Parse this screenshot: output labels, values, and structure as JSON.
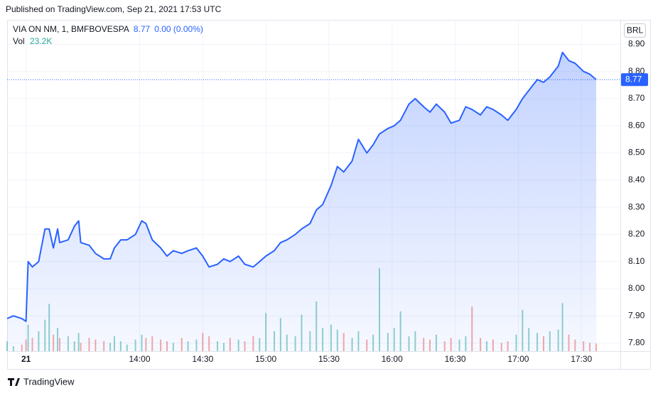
{
  "header": {
    "published": "Published on TradingView.com, Sep 21, 2021 17:53 UTC"
  },
  "footer": {
    "brand": "TradingView"
  },
  "chart_data": {
    "type": "area",
    "symbol": "VIA ON NM, 1, BMFBOVESPA",
    "change": "0.00 (0.00%)",
    "currency": "BRL",
    "volume_name": "Vol",
    "volume_label": "23.2K",
    "xlim": [
      777,
      1068.5
    ],
    "ylim": [
      7.77,
      8.99
    ],
    "y2lim": [
      0,
      1000000
    ],
    "grid": true,
    "xticks": [
      {
        "value": 786,
        "label": "21"
      },
      {
        "value": 840,
        "label": "14:00"
      },
      {
        "value": 870,
        "label": "14:30"
      },
      {
        "value": 900,
        "label": "15:00"
      },
      {
        "value": 930,
        "label": "15:30"
      },
      {
        "value": 960,
        "label": "16:00"
      },
      {
        "value": 990,
        "label": "16:30"
      },
      {
        "value": 1020,
        "label": "17:00"
      },
      {
        "value": 1050,
        "label": "17:30"
      }
    ],
    "yticks": [
      {
        "value": 7.8,
        "label": "7.80"
      },
      {
        "value": 7.9,
        "label": "7.90"
      },
      {
        "value": 8.0,
        "label": "8.00"
      },
      {
        "value": 8.1,
        "label": "8.10"
      },
      {
        "value": 8.2,
        "label": "8.20"
      },
      {
        "value": 8.3,
        "label": "8.30"
      },
      {
        "value": 8.4,
        "label": "8.40"
      },
      {
        "value": 8.5,
        "label": "8.50"
      },
      {
        "value": 8.6,
        "label": "8.60"
      },
      {
        "value": 8.7,
        "label": "8.70"
      },
      {
        "value": 8.8,
        "label": "8.80"
      },
      {
        "value": 8.9,
        "label": "8.90"
      }
    ],
    "x": [
      777,
      780,
      784,
      786,
      787,
      789,
      792,
      795,
      797,
      799,
      801,
      802,
      806,
      809,
      811,
      812,
      816,
      819,
      823,
      826,
      828,
      831,
      834,
      838,
      841,
      843,
      846,
      850,
      853,
      856,
      860,
      863,
      867,
      870,
      873,
      877,
      880,
      883,
      887,
      890,
      894,
      897,
      900,
      904,
      907,
      910,
      914,
      917,
      921,
      924,
      927,
      931,
      934,
      937,
      941,
      944,
      948,
      951,
      954,
      958,
      961,
      964,
      968,
      971,
      975,
      978,
      981,
      985,
      988,
      992,
      995,
      998,
      1002,
      1005,
      1008,
      1012,
      1015,
      1019,
      1022,
      1025,
      1029,
      1032,
      1035,
      1039,
      1041,
      1044,
      1047,
      1051,
      1054,
      1057
    ],
    "series": [
      {
        "name": "Price",
        "color": "#2962ff",
        "values": [
          7.89,
          7.9,
          7.89,
          7.88,
          8.1,
          8.08,
          8.1,
          8.22,
          8.22,
          8.15,
          8.22,
          8.17,
          8.18,
          8.23,
          8.25,
          8.17,
          8.16,
          8.13,
          8.11,
          8.11,
          8.15,
          8.18,
          8.18,
          8.2,
          8.25,
          8.24,
          8.18,
          8.15,
          8.12,
          8.14,
          8.13,
          8.14,
          8.15,
          8.12,
          8.08,
          8.09,
          8.11,
          8.1,
          8.12,
          8.09,
          8.08,
          8.1,
          8.12,
          8.14,
          8.17,
          8.18,
          8.2,
          8.22,
          8.24,
          8.29,
          8.31,
          8.38,
          8.45,
          8.43,
          8.47,
          8.55,
          8.5,
          8.53,
          8.57,
          8.59,
          8.6,
          8.62,
          8.68,
          8.7,
          8.67,
          8.65,
          8.68,
          8.65,
          8.61,
          8.62,
          8.67,
          8.66,
          8.64,
          8.67,
          8.66,
          8.64,
          8.62,
          8.66,
          8.7,
          8.73,
          8.77,
          8.76,
          8.78,
          8.82,
          8.87,
          8.84,
          8.83,
          8.8,
          8.79,
          8.77
        ]
      },
      {
        "name": "Vol",
        "axis": "y2",
        "up_color": "#26a69a",
        "down_color": "#ef5350",
        "values": [
          30000,
          15000,
          20000,
          35000,
          80000,
          40000,
          60000,
          95000,
          143000,
          50000,
          70000,
          40000,
          45000,
          30000,
          55000,
          25000,
          40000,
          35000,
          30000,
          25000,
          45000,
          30000,
          20000,
          35000,
          50000,
          40000,
          45000,
          35000,
          30000,
          25000,
          40000,
          30000,
          35000,
          55000,
          45000,
          30000,
          25000,
          40000,
          35000,
          30000,
          45000,
          40000,
          115000,
          60000,
          100000,
          50000,
          45000,
          110000,
          60000,
          150000,
          70000,
          80000,
          65000,
          55000,
          40000,
          60000,
          35000,
          50000,
          250000,
          55000,
          70000,
          120000,
          45000,
          60000,
          40000,
          35000,
          50000,
          30000,
          40000,
          35000,
          45000,
          135000,
          40000,
          30000,
          35000,
          25000,
          30000,
          50000,
          125000,
          70000,
          55000,
          45000,
          60000,
          65000,
          145000,
          50000,
          35000,
          30000,
          25000,
          23200
        ]
      }
    ]
  }
}
